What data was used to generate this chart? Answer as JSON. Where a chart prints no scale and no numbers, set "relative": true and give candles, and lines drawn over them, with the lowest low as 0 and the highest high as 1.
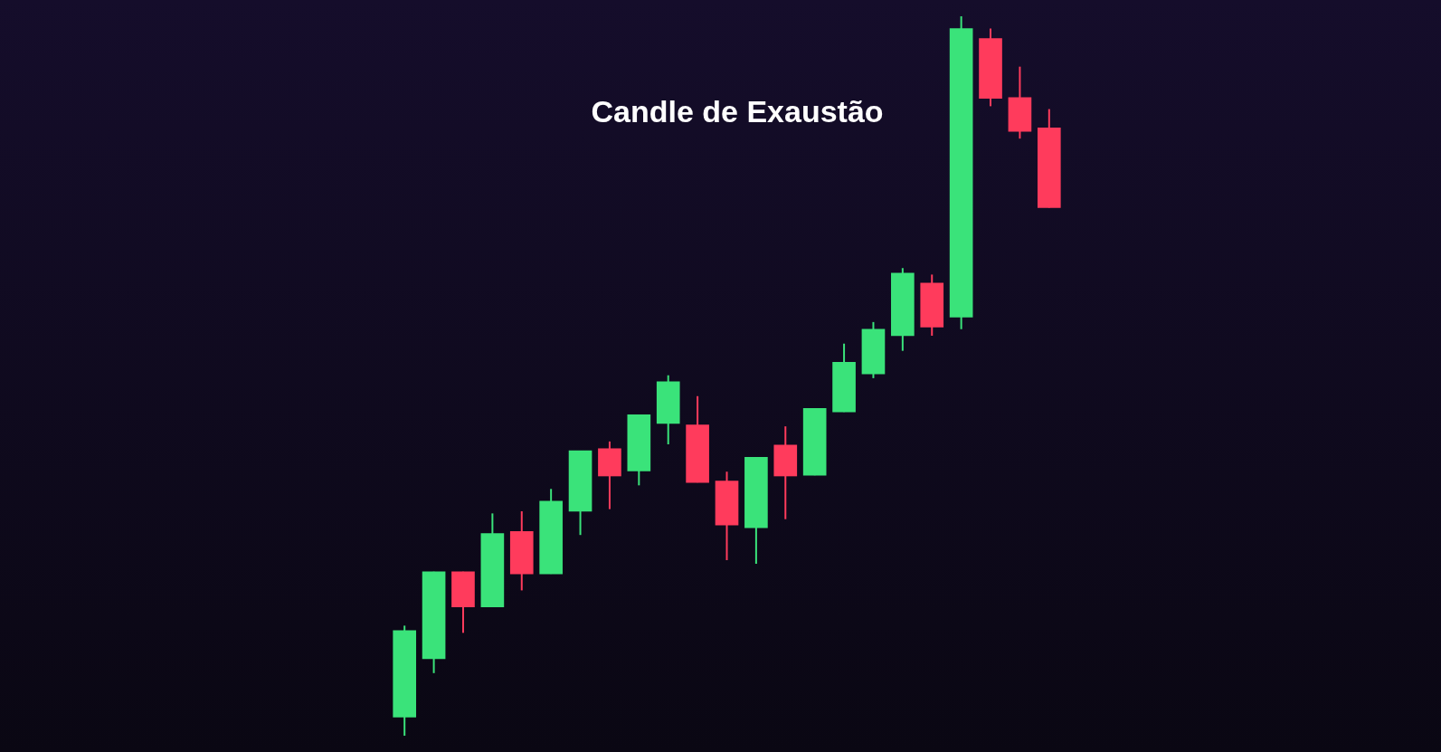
{
  "chart_data": {
    "type": "candlestick",
    "relative": true,
    "annotations": [
      "Candle de Exaustão"
    ],
    "categories": [
      null,
      null,
      null,
      null,
      null,
      null,
      null,
      null,
      null,
      null,
      null,
      null,
      null,
      null,
      null,
      null,
      null,
      null,
      null,
      null,
      null,
      null,
      null
    ],
    "ohlc": [
      [
        0.026,
        0.153,
        0,
        0.146
      ],
      [
        0.107,
        0.228,
        0.087,
        0.228
      ],
      [
        0.228,
        0.228,
        0.143,
        0.179
      ],
      [
        0.179,
        0.309,
        0.179,
        0.281
      ],
      [
        0.284,
        0.312,
        0.202,
        0.225
      ],
      [
        0.225,
        0.343,
        0.225,
        0.326
      ],
      [
        0.312,
        0.396,
        0.279,
        0.396
      ],
      [
        0.399,
        0.409,
        0.315,
        0.361
      ],
      [
        0.368,
        0.446,
        0.348,
        0.446
      ],
      [
        0.434,
        0.501,
        0.405,
        0.492
      ],
      [
        0.432,
        0.472,
        0.352,
        0.352
      ],
      [
        0.354,
        0.367,
        0.244,
        0.293
      ],
      [
        0.289,
        0.387,
        0.239,
        0.387
      ],
      [
        0.404,
        0.43,
        0.301,
        0.361
      ],
      [
        0.362,
        0.455,
        0.362,
        0.455
      ],
      [
        0.45,
        0.545,
        0.45,
        0.519
      ],
      [
        0.503,
        0.575,
        0.497,
        0.565
      ],
      [
        0.556,
        0.65,
        0.535,
        0.643
      ],
      [
        0.629,
        0.641,
        0.556,
        0.568
      ],
      [
        0.582,
        1,
        0.565,
        0.983
      ],
      [
        0.969,
        0.983,
        0.875,
        0.886
      ],
      [
        0.887,
        0.93,
        0.83,
        0.84
      ],
      [
        0.845,
        0.871,
        0.734,
        0.734
      ]
    ],
    "colors": [
      "#3ae37a",
      "#3ae37a",
      "#ff3b5c",
      "#3ae37a",
      "#ff3b5c",
      "#3ae37a",
      "#3ae37a",
      "#ff3b5c",
      "#3ae37a",
      "#3ae37a",
      "#ff3b5c",
      "#ff3b5c",
      "#3ae37a",
      "#ff3b5c",
      "#3ae37a",
      "#3ae37a",
      "#3ae37a",
      "#3ae37a",
      "#ff3b5c",
      "#3ae37a",
      "#ff3b5c",
      "#ff3b5c",
      "#ff3b5c"
    ]
  }
}
